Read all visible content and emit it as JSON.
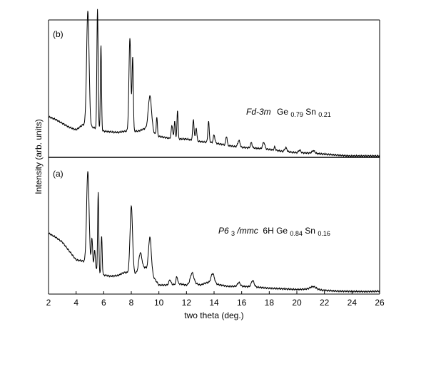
{
  "chart_data": {
    "type": "line",
    "xlabel": "two theta (deg.)",
    "ylabel": "Intensity (arb. units)",
    "xlim": [
      2,
      26
    ],
    "xticks": [
      "2",
      "4",
      "6",
      "8",
      "10",
      "12",
      "14",
      "16",
      "18",
      "20",
      "22",
      "24",
      "26"
    ],
    "grid": false,
    "colors": {
      "line": "#000000",
      "axes": "#000000"
    },
    "panels": [
      {
        "id": "b",
        "tag": "(b)",
        "annotation": {
          "phase": "Fd-3m",
          "formula": [
            {
              "t": "Ge",
              "sub": false
            },
            {
              "t": "0.79",
              "sub": true
            },
            {
              "t": "Sn",
              "sub": false
            },
            {
              "t": "0.21",
              "sub": true
            }
          ]
        },
        "ylim": [
          0,
          1.02
        ],
        "baseline": [
          [
            2.0,
            0.3
          ],
          [
            2.5,
            0.28
          ],
          [
            3.0,
            0.25
          ],
          [
            3.5,
            0.22
          ],
          [
            4.0,
            0.2
          ],
          [
            4.5,
            0.24
          ],
          [
            5.2,
            0.22
          ],
          [
            6.0,
            0.19
          ],
          [
            7.0,
            0.18
          ],
          [
            7.6,
            0.19
          ],
          [
            8.5,
            0.19
          ],
          [
            9.0,
            0.21
          ],
          [
            10.0,
            0.15
          ],
          [
            11.0,
            0.13
          ],
          [
            12.0,
            0.13
          ],
          [
            13.0,
            0.11
          ],
          [
            14.0,
            0.1
          ],
          [
            15.0,
            0.08
          ],
          [
            16.0,
            0.065
          ],
          [
            17.0,
            0.06
          ],
          [
            18.0,
            0.05
          ],
          [
            19.0,
            0.035
          ],
          [
            20.0,
            0.025
          ],
          [
            21.0,
            0.022
          ],
          [
            22.0,
            0.014
          ],
          [
            23.0,
            0.006
          ],
          [
            23.8,
            0.0
          ],
          [
            26.0,
            0.0
          ]
        ],
        "peaks": [
          [
            4.85,
            0.88,
            0.09
          ],
          [
            5.55,
            0.92,
            0.045
          ],
          [
            5.8,
            0.65,
            0.04
          ],
          [
            7.9,
            0.71,
            0.07
          ],
          [
            8.1,
            0.56,
            0.045
          ],
          [
            9.35,
            0.27,
            0.12
          ],
          [
            9.85,
            0.14,
            0.04
          ],
          [
            10.95,
            0.1,
            0.06
          ],
          [
            11.15,
            0.14,
            0.04
          ],
          [
            11.35,
            0.22,
            0.04
          ],
          [
            12.5,
            0.16,
            0.05
          ],
          [
            12.7,
            0.1,
            0.05
          ],
          [
            13.6,
            0.16,
            0.05
          ],
          [
            14.0,
            0.06,
            0.06
          ],
          [
            14.9,
            0.07,
            0.05
          ],
          [
            15.8,
            0.05,
            0.08
          ],
          [
            16.7,
            0.04,
            0.06
          ],
          [
            17.6,
            0.05,
            0.08
          ],
          [
            18.4,
            0.025,
            0.05
          ],
          [
            19.2,
            0.03,
            0.08
          ],
          [
            20.2,
            0.02,
            0.08
          ],
          [
            21.2,
            0.02,
            0.1
          ]
        ]
      },
      {
        "id": "a",
        "tag": "(a)",
        "annotation": {
          "phase_parts": [
            {
              "t": "P6",
              "sub": false,
              "italic": true
            },
            {
              "t": "3",
              "sub": true,
              "italic": false
            },
            {
              "t": "/mmc",
              "sub": false,
              "italic": true
            }
          ],
          "formula": [
            {
              "t": " 6H Ge",
              "sub": false
            },
            {
              "t": "0.84",
              "sub": true
            },
            {
              "t": "Sn",
              "sub": false
            },
            {
              "t": "0.16",
              "sub": true
            }
          ]
        },
        "ylim": [
          0,
          1.02
        ],
        "baseline": [
          [
            2.0,
            0.47
          ],
          [
            2.5,
            0.44
          ],
          [
            3.0,
            0.4
          ],
          [
            3.5,
            0.33
          ],
          [
            4.0,
            0.26
          ],
          [
            4.5,
            0.25
          ],
          [
            5.0,
            0.22
          ],
          [
            5.5,
            0.17
          ],
          [
            6.0,
            0.14
          ],
          [
            6.5,
            0.13
          ],
          [
            7.0,
            0.135
          ],
          [
            7.5,
            0.16
          ],
          [
            8.5,
            0.15
          ],
          [
            9.0,
            0.2
          ],
          [
            9.5,
            0.14
          ],
          [
            10.0,
            0.06
          ],
          [
            10.8,
            0.06
          ],
          [
            11.5,
            0.07
          ],
          [
            12.0,
            0.06
          ],
          [
            12.5,
            0.08
          ],
          [
            13.0,
            0.06
          ],
          [
            13.5,
            0.08
          ],
          [
            14.0,
            0.07
          ],
          [
            14.5,
            0.06
          ],
          [
            15.0,
            0.05
          ],
          [
            16.0,
            0.05
          ],
          [
            17.0,
            0.045
          ],
          [
            18.0,
            0.035
          ],
          [
            19.0,
            0.03
          ],
          [
            20.0,
            0.025
          ],
          [
            21.0,
            0.03
          ],
          [
            22.0,
            0.018
          ],
          [
            23.0,
            0.012
          ],
          [
            24.0,
            0.01
          ],
          [
            25.0,
            0.008
          ],
          [
            26.0,
            0.012
          ]
        ],
        "peaks": [
          [
            4.85,
            0.73,
            0.09
          ],
          [
            5.15,
            0.22,
            0.05
          ],
          [
            5.35,
            0.15,
            0.05
          ],
          [
            5.6,
            0.63,
            0.04
          ],
          [
            5.85,
            0.3,
            0.04
          ],
          [
            8.0,
            0.53,
            0.09
          ],
          [
            8.65,
            0.15,
            0.12
          ],
          [
            9.35,
            0.28,
            0.1
          ],
          [
            10.8,
            0.04,
            0.08
          ],
          [
            11.3,
            0.06,
            0.06
          ],
          [
            12.4,
            0.08,
            0.12
          ],
          [
            13.9,
            0.08,
            0.12
          ],
          [
            15.8,
            0.03,
            0.1
          ],
          [
            16.8,
            0.05,
            0.1
          ],
          [
            21.2,
            0.02,
            0.2
          ]
        ]
      }
    ]
  }
}
